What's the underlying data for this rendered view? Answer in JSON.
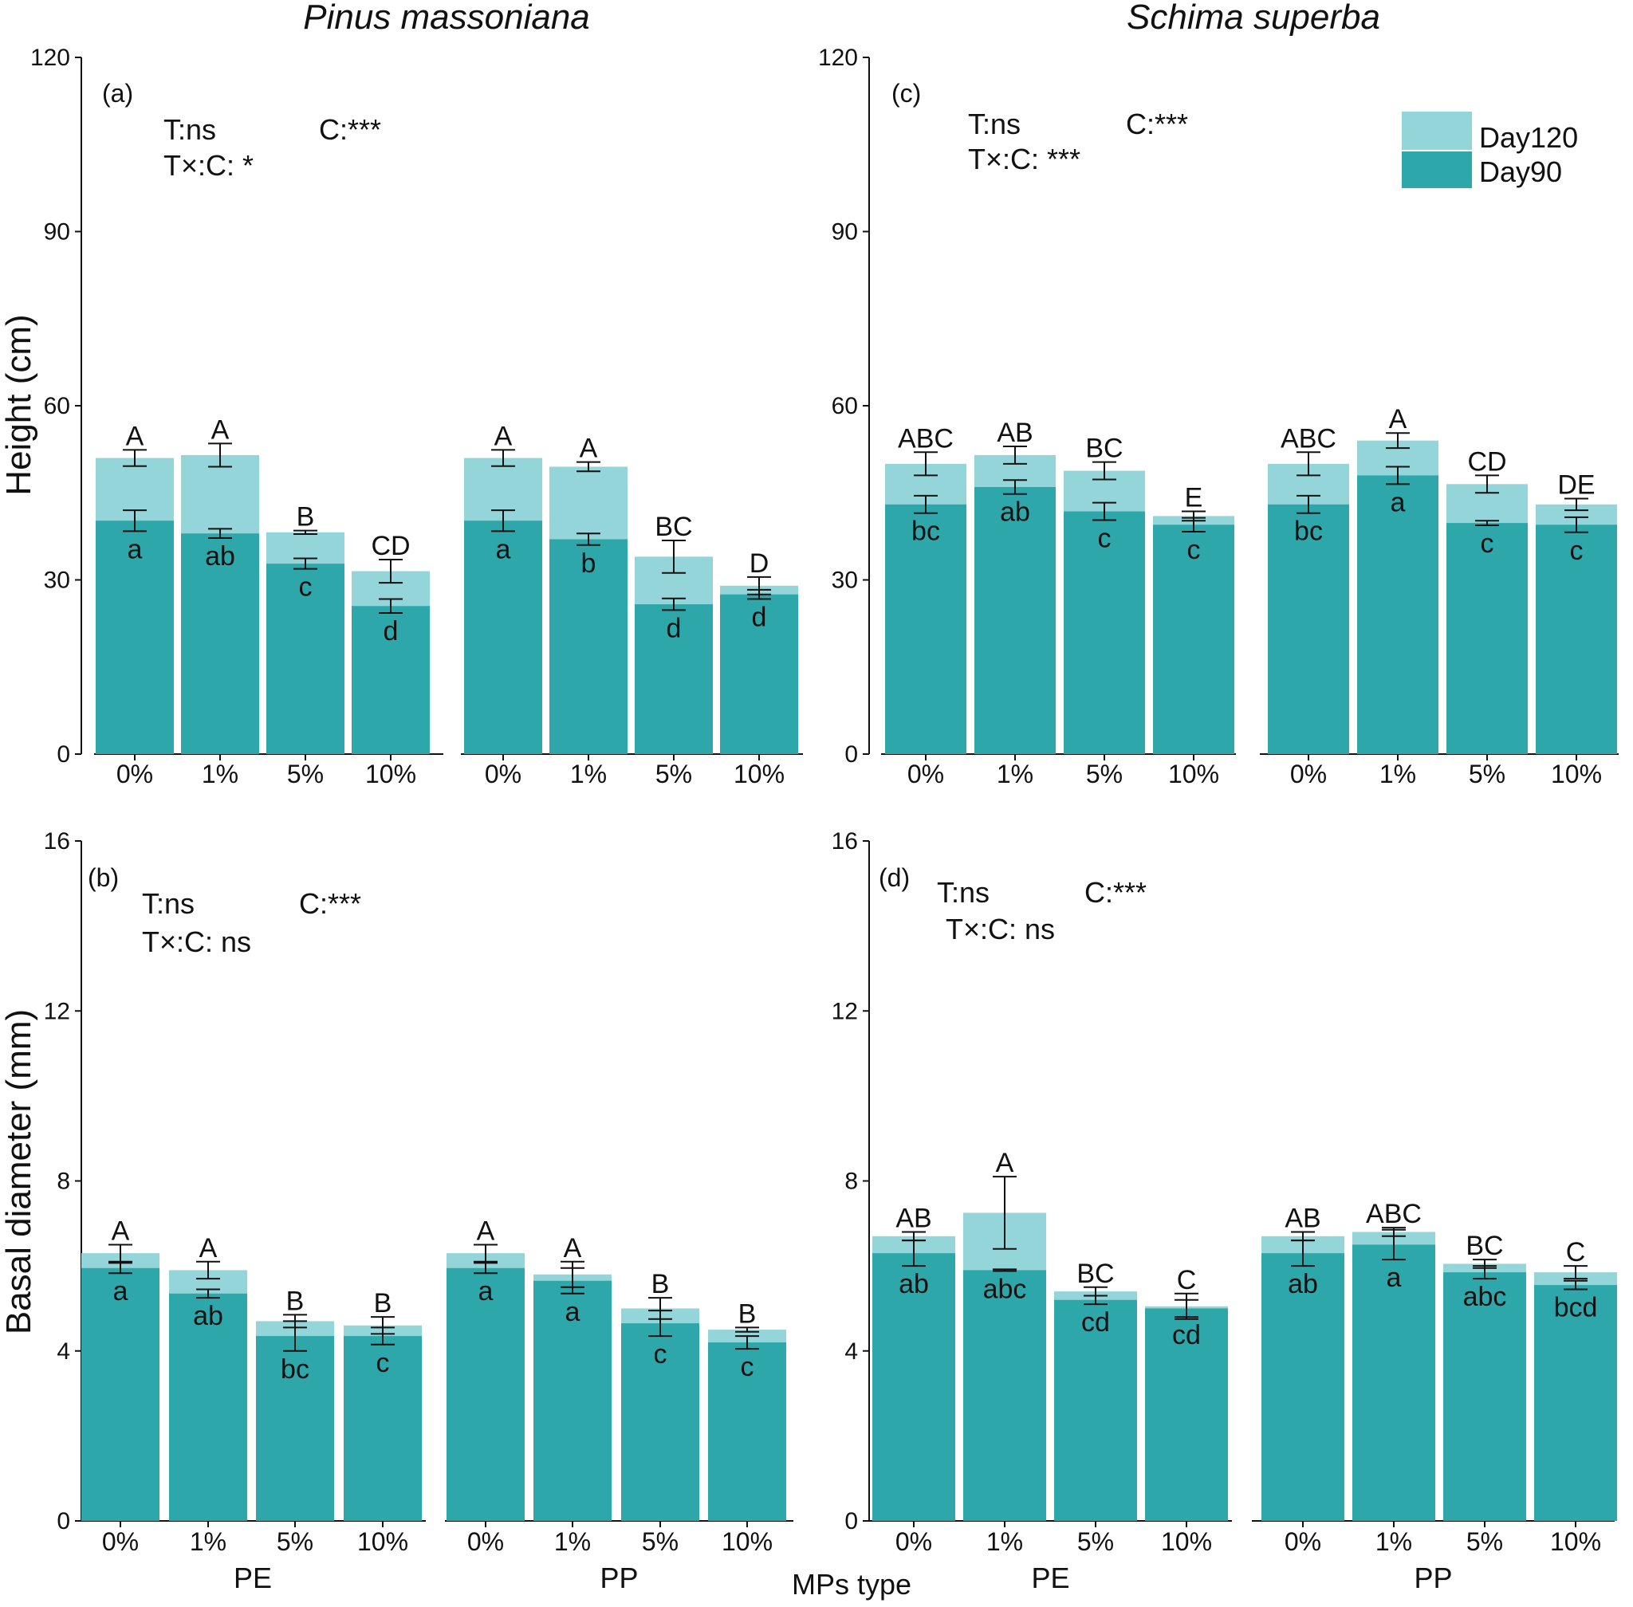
{
  "figure": {
    "species_left": "Pinus massoniana",
    "species_right": "Schima superba",
    "xlabel": "MPs type",
    "legend": [
      "Day120",
      "Day90"
    ],
    "colors": {
      "day90": "#2ea7ab",
      "day120": "#93d5d9",
      "text": "#111111"
    }
  },
  "chart_data": [
    {
      "panel": "(a)",
      "type": "bar",
      "stacked": "overlay",
      "ylabel": "Height (cm)",
      "ylim": [
        0,
        120
      ],
      "yticks": [
        0,
        30,
        60,
        90,
        120
      ],
      "stats": [
        "T:ns",
        "C:***",
        "T×:C: *"
      ],
      "groups": [
        {
          "name": "PE",
          "categories": [
            "0%",
            "1%",
            "5%",
            "10%"
          ],
          "day90": [
            40.2,
            38.0,
            32.8,
            25.5
          ],
          "day90_err": [
            1.8,
            0.8,
            0.9,
            1.2
          ],
          "day90_letters": [
            "a",
            "ab",
            "c",
            "d"
          ],
          "day120": [
            51.0,
            51.5,
            38.2,
            31.5
          ],
          "day120_err": [
            1.4,
            2.0,
            0.3,
            2.0
          ],
          "day120_letters": [
            "A",
            "A",
            "B",
            "CD"
          ]
        },
        {
          "name": "PP",
          "categories": [
            "0%",
            "1%",
            "5%",
            "10%"
          ],
          "day90": [
            40.2,
            37.0,
            25.8,
            27.5
          ],
          "day90_err": [
            1.8,
            1.0,
            1.0,
            0.8
          ],
          "day90_letters": [
            "a",
            "b",
            "d",
            "d"
          ],
          "day120": [
            51.0,
            49.5,
            34.0,
            29.0
          ],
          "day120_err": [
            1.4,
            0.8,
            2.8,
            1.5
          ],
          "day120_letters": [
            "A",
            "A",
            "BC",
            "D"
          ]
        }
      ]
    },
    {
      "panel": "(b)",
      "type": "bar",
      "stacked": "overlay",
      "ylabel": "Basal diameter (mm)",
      "ylim": [
        0,
        16
      ],
      "yticks": [
        0,
        4,
        8,
        12,
        16
      ],
      "stats": [
        "T:ns",
        "C:***",
        "T×:C: ns"
      ],
      "groups": [
        {
          "name": "PE",
          "categories": [
            "0%",
            "1%",
            "5%",
            "10%"
          ],
          "day90": [
            5.95,
            5.35,
            4.35,
            4.35
          ],
          "day90_err": [
            0.12,
            0.1,
            0.35,
            0.2
          ],
          "day90_letters": [
            "a",
            "ab",
            "bc",
            "c"
          ],
          "day120": [
            6.3,
            5.9,
            4.7,
            4.6
          ],
          "day120_err": [
            0.2,
            0.2,
            0.15,
            0.2
          ],
          "day120_letters": [
            "A",
            "A",
            "B",
            "B"
          ]
        },
        {
          "name": "PP",
          "categories": [
            "0%",
            "1%",
            "5%",
            "10%"
          ],
          "day90": [
            5.95,
            5.65,
            4.65,
            4.2
          ],
          "day90_err": [
            0.12,
            0.3,
            0.3,
            0.15
          ],
          "day90_letters": [
            "a",
            "a",
            "c",
            "c"
          ],
          "day120": [
            6.3,
            5.8,
            5.0,
            4.5
          ],
          "day120_err": [
            0.2,
            0.3,
            0.25,
            0.05
          ],
          "day120_letters": [
            "A",
            "A",
            "B",
            "B"
          ]
        }
      ]
    },
    {
      "panel": "(c)",
      "type": "bar",
      "stacked": "overlay",
      "ylabel": "",
      "ylim": [
        0,
        120
      ],
      "yticks": [
        0,
        30,
        60,
        90,
        120
      ],
      "stats": [
        "T:ns",
        "C:***",
        "T×:C: ***"
      ],
      "groups": [
        {
          "name": "PE",
          "categories": [
            "0%",
            "1%",
            "5%",
            "10%"
          ],
          "day90": [
            43.0,
            46.0,
            41.8,
            39.5
          ],
          "day90_err": [
            1.5,
            1.2,
            1.5,
            1.2
          ],
          "day90_letters": [
            "bc",
            "ab",
            "c",
            "c"
          ],
          "day120": [
            50.0,
            51.5,
            48.8,
            41.0
          ],
          "day120_err": [
            2.0,
            1.5,
            1.5,
            0.8
          ],
          "day120_letters": [
            "ABC",
            "AB",
            "BC",
            "E"
          ]
        },
        {
          "name": "PP",
          "categories": [
            "0%",
            "1%",
            "5%",
            "10%"
          ],
          "day90": [
            43.0,
            48.0,
            39.8,
            39.5
          ],
          "day90_err": [
            1.5,
            1.5,
            0.4,
            1.3
          ],
          "day90_letters": [
            "bc",
            "a",
            "c",
            "c"
          ],
          "day120": [
            50.0,
            54.0,
            46.5,
            43.0
          ],
          "day120_err": [
            2.0,
            1.3,
            1.5,
            1.0
          ],
          "day120_letters": [
            "ABC",
            "A",
            "CD",
            "DE"
          ]
        }
      ]
    },
    {
      "panel": "(d)",
      "type": "bar",
      "stacked": "overlay",
      "ylabel": "",
      "ylim": [
        0,
        16
      ],
      "yticks": [
        0,
        4,
        8,
        12,
        16
      ],
      "stats": [
        "T:ns",
        "C:***",
        "T×:C: ns"
      ],
      "groups": [
        {
          "name": "PE",
          "categories": [
            "0%",
            "1%",
            "5%",
            "10%"
          ],
          "day90": [
            6.3,
            5.9,
            5.2,
            5.0
          ],
          "day90_err": [
            0.3,
            0.02,
            0.1,
            0.2
          ],
          "day90_letters": [
            "ab",
            "abc",
            "cd",
            "cd"
          ],
          "day120": [
            6.7,
            7.25,
            5.4,
            5.05
          ],
          "day120_err": [
            0.1,
            0.85,
            0.1,
            0.3
          ],
          "day120_letters": [
            "AB",
            "A",
            "BC",
            "C"
          ]
        },
        {
          "name": "PP",
          "categories": [
            "0%",
            "1%",
            "5%",
            "10%"
          ],
          "day90": [
            6.3,
            6.5,
            5.85,
            5.55
          ],
          "day90_err": [
            0.3,
            0.35,
            0.15,
            0.1
          ],
          "day90_letters": [
            "ab",
            "a",
            "abc",
            "bcd"
          ],
          "day120": [
            6.7,
            6.8,
            6.05,
            5.85
          ],
          "day120_err": [
            0.1,
            0.1,
            0.1,
            0.15
          ],
          "day120_letters": [
            "AB",
            "ABC",
            "BC",
            "C"
          ]
        }
      ]
    }
  ]
}
